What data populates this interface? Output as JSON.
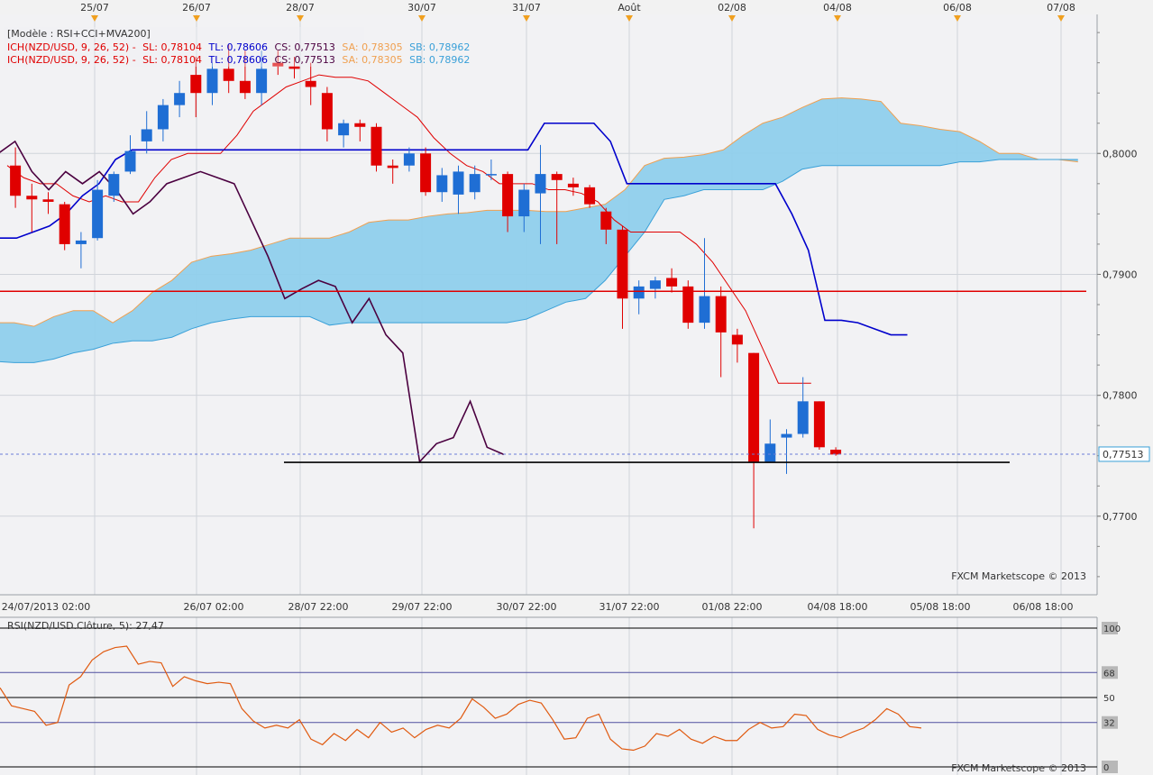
{
  "chart_data": {
    "type": "candlestick",
    "instrument": "NZD/USD",
    "template_label": "[Modèle : RSI+CCI+MVA200]",
    "ichimoku_lines": [
      {
        "prefix": "ICH(NZD/USD, 9, 26, 52) -",
        "sl": "SL: 0,78104",
        "tl": "TL: 0,78606",
        "cs": "CS: 0,77513",
        "sa": "SA: 0,78305",
        "sb": "SB: 0,78962"
      },
      {
        "prefix": "ICH(NZD/USD, 9, 26, 52) -",
        "sl": "SL: 0,78104",
        "tl": "TL: 0,78606",
        "cs": "CS: 0,77513",
        "sa": "SA: 0,78305",
        "sb": "SB: 0,78962"
      }
    ],
    "top_dates": [
      "25/07",
      "26/07",
      "28/07",
      "30/07",
      "31/07",
      "Août",
      "02/08",
      "04/08",
      "06/08",
      "07/08"
    ],
    "bottom_dates": [
      "24/07/2013 02:00",
      "26/07 02:00",
      "28/07 22:00",
      "29/07 22:00",
      "30/07 22:00",
      "31/07 22:00",
      "01/08 22:00",
      "04/08 18:00",
      "05/08 18:00",
      "06/08 18:00"
    ],
    "y_ticks": [
      "0,8000",
      "0,7900",
      "0,7800",
      "0,7700"
    ],
    "ylim": [
      0.7635,
      0.8115
    ],
    "last_price": "0,77513",
    "last_price_value": 0.77513,
    "resistance_value": 0.7886,
    "support_value": 0.77445,
    "candles": [
      {
        "o": 0.799,
        "h": 0.8005,
        "l": 0.7955,
        "c": 0.7965
      },
      {
        "o": 0.7965,
        "h": 0.7975,
        "l": 0.7935,
        "c": 0.7962
      },
      {
        "o": 0.7962,
        "h": 0.7968,
        "l": 0.795,
        "c": 0.796
      },
      {
        "o": 0.7958,
        "h": 0.796,
        "l": 0.792,
        "c": 0.7925
      },
      {
        "o": 0.7925,
        "h": 0.7935,
        "l": 0.7905,
        "c": 0.7928
      },
      {
        "o": 0.793,
        "h": 0.7978,
        "l": 0.7928,
        "c": 0.797
      },
      {
        "o": 0.7965,
        "h": 0.7985,
        "l": 0.796,
        "c": 0.7983
      },
      {
        "o": 0.7985,
        "h": 0.8015,
        "l": 0.7983,
        "c": 0.8002
      },
      {
        "o": 0.801,
        "h": 0.8035,
        "l": 0.8,
        "c": 0.802
      },
      {
        "o": 0.802,
        "h": 0.8045,
        "l": 0.801,
        "c": 0.804
      },
      {
        "o": 0.804,
        "h": 0.806,
        "l": 0.803,
        "c": 0.805
      },
      {
        "o": 0.8065,
        "h": 0.808,
        "l": 0.803,
        "c": 0.805
      },
      {
        "o": 0.805,
        "h": 0.8075,
        "l": 0.804,
        "c": 0.807
      },
      {
        "o": 0.807,
        "h": 0.809,
        "l": 0.805,
        "c": 0.806
      },
      {
        "o": 0.806,
        "h": 0.8085,
        "l": 0.8045,
        "c": 0.805
      },
      {
        "o": 0.805,
        "h": 0.8085,
        "l": 0.804,
        "c": 0.807
      },
      {
        "o": 0.8075,
        "h": 0.8085,
        "l": 0.8065,
        "c": 0.8072
      },
      {
        "o": 0.8072,
        "h": 0.808,
        "l": 0.8062,
        "c": 0.807
      },
      {
        "o": 0.806,
        "h": 0.8075,
        "l": 0.804,
        "c": 0.8055
      },
      {
        "o": 0.805,
        "h": 0.8055,
        "l": 0.801,
        "c": 0.802
      },
      {
        "o": 0.8015,
        "h": 0.8028,
        "l": 0.8005,
        "c": 0.8025
      },
      {
        "o": 0.8025,
        "h": 0.8028,
        "l": 0.801,
        "c": 0.8022
      },
      {
        "o": 0.8022,
        "h": 0.8025,
        "l": 0.7985,
        "c": 0.799
      },
      {
        "o": 0.799,
        "h": 0.7995,
        "l": 0.7975,
        "c": 0.7988
      },
      {
        "o": 0.799,
        "h": 0.8005,
        "l": 0.7985,
        "c": 0.8
      },
      {
        "o": 0.8,
        "h": 0.8005,
        "l": 0.7965,
        "c": 0.7968
      },
      {
        "o": 0.7968,
        "h": 0.7988,
        "l": 0.796,
        "c": 0.7982
      },
      {
        "o": 0.7966,
        "h": 0.799,
        "l": 0.795,
        "c": 0.7985
      },
      {
        "o": 0.7968,
        "h": 0.799,
        "l": 0.7962,
        "c": 0.7983
      },
      {
        "o": 0.7982,
        "h": 0.7995,
        "l": 0.7978,
        "c": 0.7983
      },
      {
        "o": 0.7983,
        "h": 0.7985,
        "l": 0.7935,
        "c": 0.7948
      },
      {
        "o": 0.7948,
        "h": 0.7975,
        "l": 0.7935,
        "c": 0.797
      },
      {
        "o": 0.7967,
        "h": 0.8007,
        "l": 0.7925,
        "c": 0.7983
      },
      {
        "o": 0.7983,
        "h": 0.7985,
        "l": 0.7925,
        "c": 0.7978
      },
      {
        "o": 0.7975,
        "h": 0.798,
        "l": 0.7965,
        "c": 0.7972
      },
      {
        "o": 0.7972,
        "h": 0.7974,
        "l": 0.7955,
        "c": 0.7958
      },
      {
        "o": 0.7952,
        "h": 0.7955,
        "l": 0.7925,
        "c": 0.7937
      },
      {
        "o": 0.7937,
        "h": 0.794,
        "l": 0.7855,
        "c": 0.788
      },
      {
        "o": 0.788,
        "h": 0.7895,
        "l": 0.7867,
        "c": 0.789
      },
      {
        "o": 0.7888,
        "h": 0.7898,
        "l": 0.788,
        "c": 0.7895
      },
      {
        "o": 0.7897,
        "h": 0.7905,
        "l": 0.7885,
        "c": 0.789
      },
      {
        "o": 0.789,
        "h": 0.7895,
        "l": 0.7855,
        "c": 0.786
      },
      {
        "o": 0.786,
        "h": 0.793,
        "l": 0.7855,
        "c": 0.7882
      },
      {
        "o": 0.7882,
        "h": 0.789,
        "l": 0.7815,
        "c": 0.7852
      },
      {
        "o": 0.785,
        "h": 0.7855,
        "l": 0.7827,
        "c": 0.7842
      },
      {
        "o": 0.7835,
        "h": 0.7835,
        "l": 0.769,
        "c": 0.7745
      },
      {
        "o": 0.7745,
        "h": 0.778,
        "l": 0.7745,
        "c": 0.776
      },
      {
        "o": 0.7765,
        "h": 0.7772,
        "l": 0.7735,
        "c": 0.7768
      },
      {
        "o": 0.7768,
        "h": 0.7815,
        "l": 0.7765,
        "c": 0.7795
      },
      {
        "o": 0.7795,
        "h": 0.7795,
        "l": 0.7755,
        "c": 0.7757
      },
      {
        "o": 0.7755,
        "h": 0.7757,
        "l": 0.775,
        "c": 0.7751
      }
    ],
    "tenkan": [
      0.799,
      0.798,
      0.7975,
      0.7975,
      0.7965,
      0.796,
      0.7965,
      0.796,
      0.796,
      0.798,
      0.7995,
      0.8,
      0.8,
      0.8,
      0.8015,
      0.8035,
      0.8045,
      0.8055,
      0.806,
      0.8065,
      0.8063,
      0.8063,
      0.806,
      0.805,
      0.804,
      0.803,
      0.8013,
      0.8,
      0.799,
      0.7985,
      0.7975,
      0.7975,
      0.7975,
      0.797,
      0.797,
      0.7967,
      0.796,
      0.7945,
      0.7935,
      0.7935,
      0.7935,
      0.7935,
      0.7925,
      0.791,
      0.789,
      0.787,
      0.784,
      0.781,
      0.781,
      0.781
    ],
    "kijun": [
      0.793,
      0.793,
      0.7935,
      0.794,
      0.795,
      0.7965,
      0.7975,
      0.7995,
      0.8003,
      0.8003,
      0.8003,
      0.8003,
      0.8003,
      0.8003,
      0.8003,
      0.8003,
      0.8003,
      0.8003,
      0.8003,
      0.8003,
      0.8003,
      0.8003,
      0.8003,
      0.8003,
      0.8003,
      0.8003,
      0.8003,
      0.8003,
      0.8003,
      0.8003,
      0.8003,
      0.8003,
      0.8003,
      0.8025,
      0.8025,
      0.8025,
      0.8025,
      0.801,
      0.7975,
      0.7975,
      0.7975,
      0.7975,
      0.7975,
      0.7975,
      0.7975,
      0.7975,
      0.7975,
      0.7975,
      0.795,
      0.792,
      0.7862,
      0.7862,
      0.786,
      0.7855,
      0.785,
      0.785
    ],
    "chikou": [
      0.8,
      0.801,
      0.7985,
      0.797,
      0.7985,
      0.7975,
      0.7985,
      0.797,
      0.795,
      0.796,
      0.7975,
      0.798,
      0.7985,
      0.798,
      0.7975,
      0.7945,
      0.7915,
      0.788,
      0.7888,
      0.7895,
      0.789,
      0.786,
      0.788,
      0.785,
      0.7835,
      0.7745,
      0.776,
      0.7765,
      0.7795,
      0.7757,
      0.7751
    ],
    "senkou_a": [
      0.786,
      0.786,
      0.7857,
      0.7865,
      0.787,
      0.787,
      0.786,
      0.787,
      0.7885,
      0.7895,
      0.791,
      0.7915,
      0.7917,
      0.792,
      0.7925,
      0.793,
      0.793,
      0.793,
      0.7935,
      0.7943,
      0.7945,
      0.7945,
      0.7948,
      0.795,
      0.7951,
      0.7953,
      0.7953,
      0.7953,
      0.7952,
      0.7952,
      0.7955,
      0.7958,
      0.797,
      0.799,
      0.7996,
      0.7997,
      0.7999,
      0.8003,
      0.8015,
      0.8025,
      0.803,
      0.8038,
      0.8045,
      0.8046,
      0.8045,
      0.8043,
      0.8025,
      0.8023,
      0.802,
      0.8018,
      0.801,
      0.8,
      0.8,
      0.7995,
      0.7995,
      0.7993
    ],
    "senkou_b": [
      0.7828,
      0.7827,
      0.7827,
      0.783,
      0.7835,
      0.7838,
      0.7843,
      0.7845,
      0.7845,
      0.7848,
      0.7855,
      0.786,
      0.7863,
      0.7865,
      0.7865,
      0.7865,
      0.7865,
      0.7858,
      0.786,
      0.786,
      0.786,
      0.786,
      0.786,
      0.786,
      0.786,
      0.786,
      0.786,
      0.7863,
      0.787,
      0.7877,
      0.788,
      0.7895,
      0.7915,
      0.7935,
      0.7962,
      0.7965,
      0.797,
      0.797,
      0.797,
      0.797,
      0.7977,
      0.7987,
      0.799,
      0.799,
      0.799,
      0.799,
      0.799,
      0.799,
      0.799,
      0.7993,
      0.7993,
      0.7995,
      0.7995,
      0.7995,
      0.7995,
      0.7995
    ]
  },
  "rsi": {
    "label": "RSI(NZD/USD.Clôture, 5): 27,47",
    "levels": [
      "100",
      "68",
      "50",
      "32",
      "0"
    ],
    "values": [
      57,
      44,
      42,
      40,
      30,
      32,
      59,
      65,
      77,
      83,
      86,
      87,
      74,
      76,
      75,
      58,
      65,
      62,
      60,
      61,
      60,
      42,
      33,
      28,
      30,
      28,
      34,
      20,
      16,
      24,
      19,
      27,
      21,
      32,
      25,
      28,
      21,
      27,
      30,
      28,
      35,
      49,
      43,
      35,
      38,
      45,
      48,
      46,
      34,
      20,
      21,
      35,
      38,
      20,
      13,
      12,
      15,
      24,
      22,
      27,
      20,
      17,
      22,
      19,
      19,
      27,
      32,
      28,
      29,
      38,
      37,
      27,
      23,
      21,
      25,
      28,
      34,
      42,
      38,
      29,
      28
    ],
    "scale_min": 0,
    "scale_max": 100
  },
  "watermark": "FXCM Marketscope © 2013",
  "colors": {
    "bull": "#1f6ed4",
    "bear": "#e00000",
    "tenkan": "#e00000",
    "kijun": "#0000cc",
    "chikou": "#4b0040",
    "cloud": "#8fcfec",
    "senkou_a": "#f0a050",
    "senkou_b": "#3aa0d8",
    "resistance": "#e00000",
    "support": "#000000",
    "rsi": "#e05a10"
  }
}
